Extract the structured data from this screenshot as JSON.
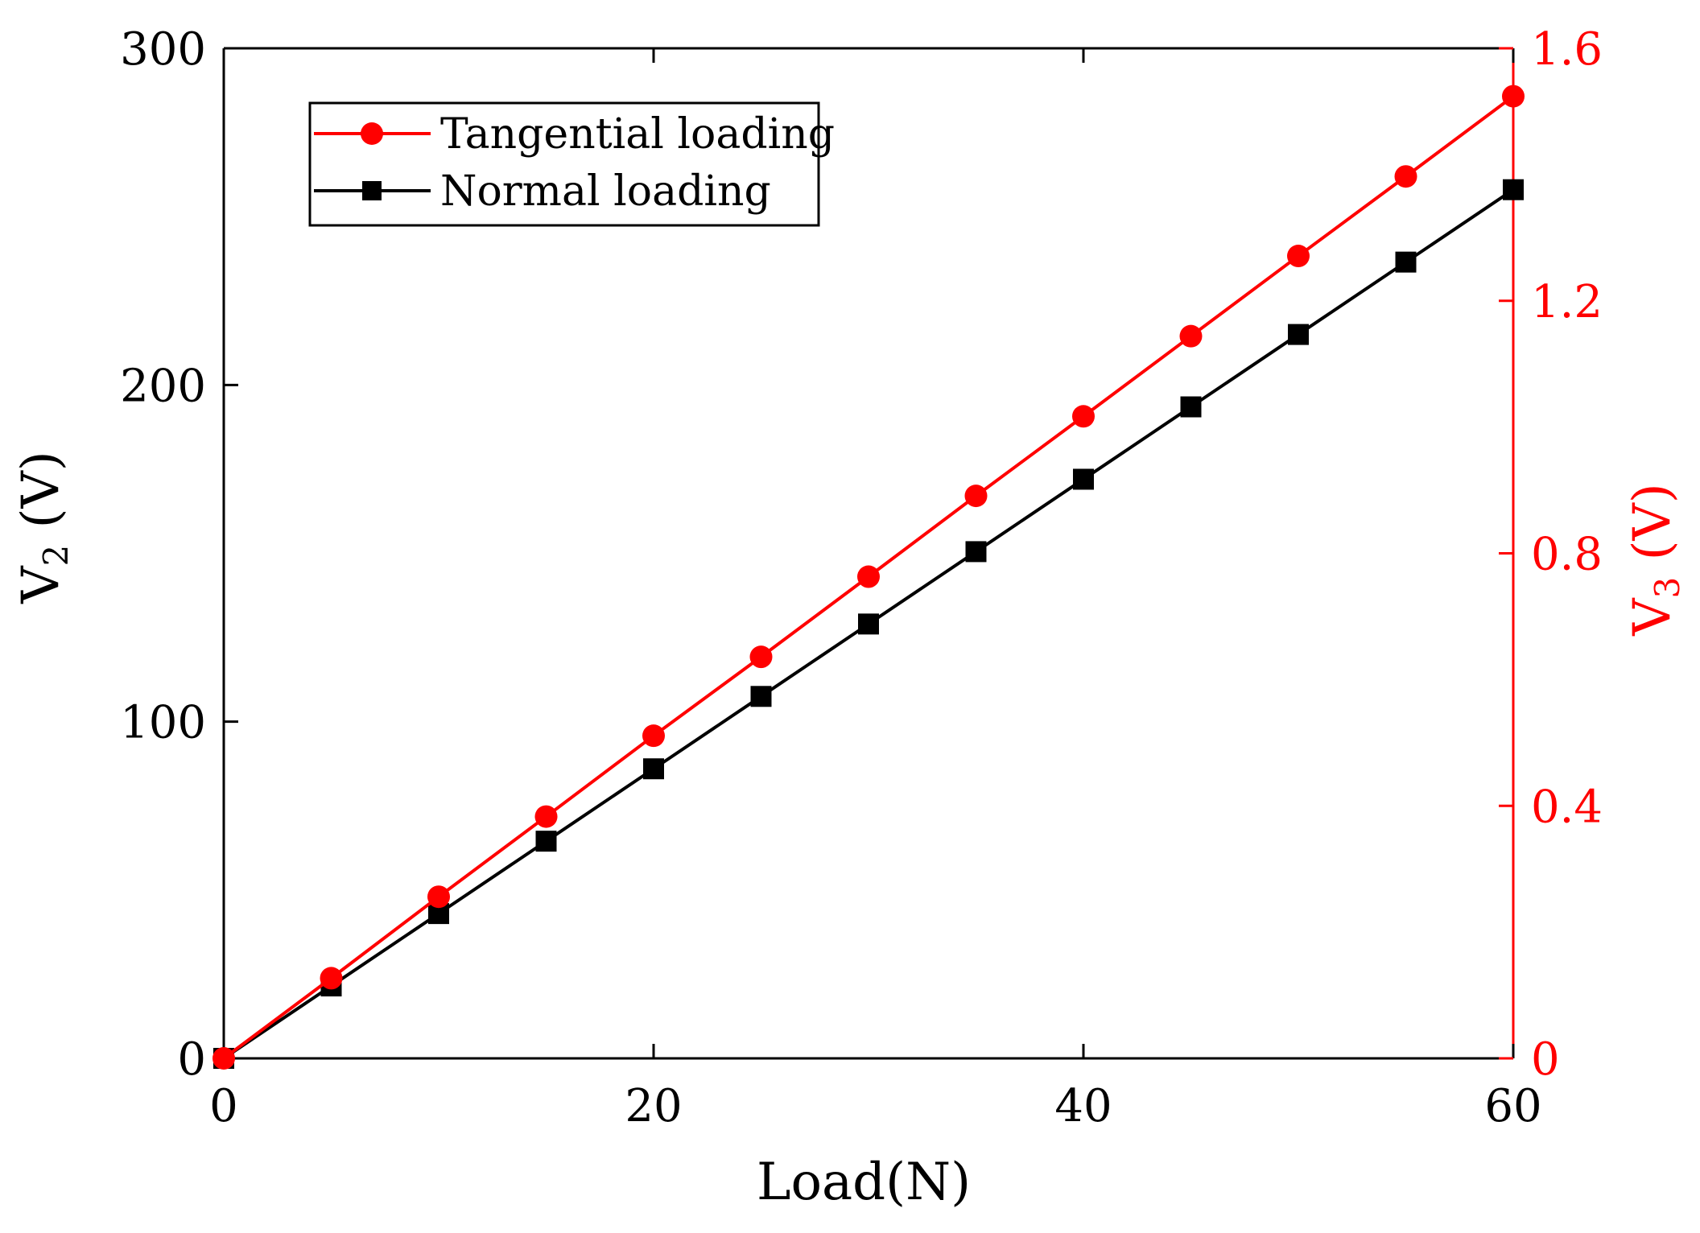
{
  "colors": {
    "left_axis": "#000000",
    "right_axis": "#ff0000",
    "tangential": "#ff0000",
    "normal": "#000000"
  },
  "chart_data": {
    "type": "line",
    "xlabel": "Load(N)",
    "ylabel_left": {
      "base": "V",
      "sub": "2",
      "unit": " (V)"
    },
    "ylabel_right": {
      "base": "V",
      "sub": "3",
      "unit": " (V)"
    },
    "xlim": [
      0,
      60
    ],
    "ylim_left": [
      0,
      300
    ],
    "ylim_right": [
      0,
      1.6
    ],
    "x_ticks": [
      "0",
      "20",
      "40",
      "60"
    ],
    "y_left_ticks": [
      "0",
      "100",
      "200",
      "300"
    ],
    "y_right_ticks": [
      "0",
      "0.4",
      "0.8",
      "1.2",
      "1.6"
    ],
    "x": [
      0,
      5,
      10,
      15,
      20,
      25,
      30,
      35,
      40,
      45,
      50,
      55,
      60
    ],
    "series": [
      {
        "name": "Tangential loading",
        "axis": "right",
        "marker": "circle",
        "color_key": "tangential",
        "values": [
          0.0,
          0.127,
          0.256,
          0.383,
          0.511,
          0.636,
          0.763,
          0.891,
          1.017,
          1.144,
          1.271,
          1.397,
          1.524
        ]
      },
      {
        "name": "Normal loading",
        "axis": "left",
        "marker": "square",
        "color_key": "normal",
        "values": [
          0.0,
          21.5,
          43.0,
          64.5,
          86.0,
          107.5,
          129.0,
          150.5,
          172.0,
          193.5,
          215.0,
          236.5,
          258.0
        ]
      }
    ],
    "legend_position": "top-left"
  }
}
